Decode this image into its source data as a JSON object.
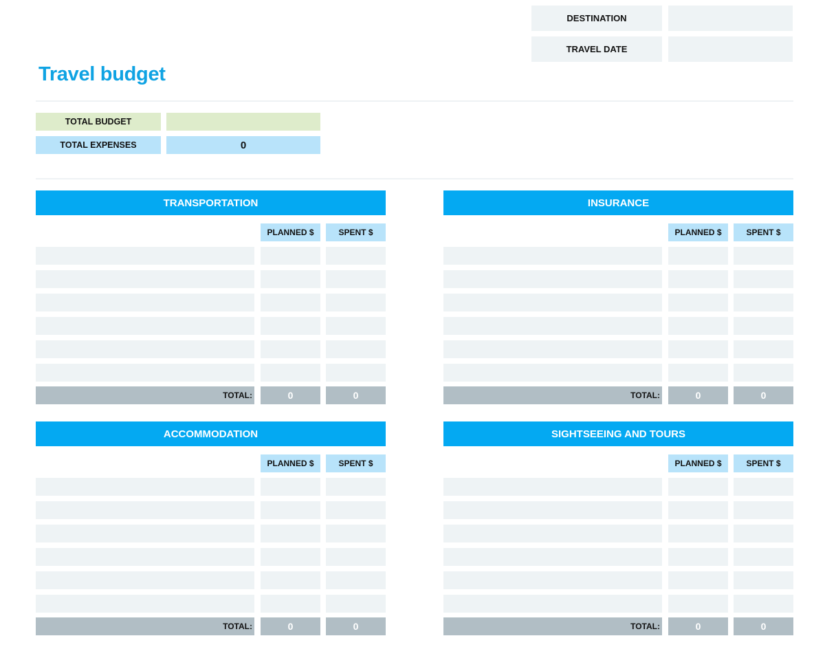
{
  "meta": {
    "destination_label": "DESTINATION",
    "destination_value": "",
    "travel_date_label": "TRAVEL DATE",
    "travel_date_value": ""
  },
  "title": "Travel budget",
  "summary": {
    "total_budget_label": "TOTAL BUDGET",
    "total_budget_value": "",
    "total_expenses_label": "TOTAL EXPENSES",
    "total_expenses_value": "0"
  },
  "columns": {
    "planned": "PLANNED $",
    "spent": "SPENT $"
  },
  "sections": [
    {
      "title": "TRANSPORTATION",
      "rows": [
        {
          "item": "",
          "planned": "",
          "spent": ""
        },
        {
          "item": "",
          "planned": "",
          "spent": ""
        },
        {
          "item": "",
          "planned": "",
          "spent": ""
        },
        {
          "item": "",
          "planned": "",
          "spent": ""
        },
        {
          "item": "",
          "planned": "",
          "spent": ""
        },
        {
          "item": "",
          "planned": "",
          "spent": ""
        }
      ],
      "total_label": "TOTAL:",
      "total_planned": "0",
      "total_spent": "0"
    },
    {
      "title": "INSURANCE",
      "rows": [
        {
          "item": "",
          "planned": "",
          "spent": ""
        },
        {
          "item": "",
          "planned": "",
          "spent": ""
        },
        {
          "item": "",
          "planned": "",
          "spent": ""
        },
        {
          "item": "",
          "planned": "",
          "spent": ""
        },
        {
          "item": "",
          "planned": "",
          "spent": ""
        },
        {
          "item": "",
          "planned": "",
          "spent": ""
        }
      ],
      "total_label": "TOTAL:",
      "total_planned": "0",
      "total_spent": "0"
    },
    {
      "title": "ACCOMMODATION",
      "rows": [
        {
          "item": "",
          "planned": "",
          "spent": ""
        },
        {
          "item": "",
          "planned": "",
          "spent": ""
        },
        {
          "item": "",
          "planned": "",
          "spent": ""
        },
        {
          "item": "",
          "planned": "",
          "spent": ""
        },
        {
          "item": "",
          "planned": "",
          "spent": ""
        },
        {
          "item": "",
          "planned": "",
          "spent": ""
        }
      ],
      "total_label": "TOTAL:",
      "total_planned": "0",
      "total_spent": "0"
    },
    {
      "title": "SIGHTSEEING AND TOURS",
      "rows": [
        {
          "item": "",
          "planned": "",
          "spent": ""
        },
        {
          "item": "",
          "planned": "",
          "spent": ""
        },
        {
          "item": "",
          "planned": "",
          "spent": ""
        },
        {
          "item": "",
          "planned": "",
          "spent": ""
        },
        {
          "item": "",
          "planned": "",
          "spent": ""
        },
        {
          "item": "",
          "planned": "",
          "spent": ""
        }
      ],
      "total_label": "TOTAL:",
      "total_planned": "0",
      "total_spent": "0"
    }
  ],
  "colors": {
    "accent": "#04a9f2",
    "title": "#0fa3e3",
    "budget_green": "#deeccb",
    "expense_blue": "#b8e3fa",
    "cell_gray": "#eef3f5",
    "total_gray": "#b1bec5"
  }
}
